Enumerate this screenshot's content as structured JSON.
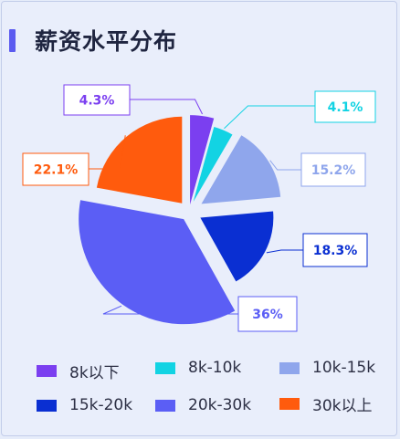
{
  "header": {
    "title": "薪资水平分布"
  },
  "colors": {
    "accent": "#5b5bf0",
    "background": "#e9eefb"
  },
  "chart_data": {
    "type": "pie",
    "title": "",
    "slices": [
      {
        "label": "8k以下",
        "value": 4.3,
        "display": "4.3%",
        "color": "#7b3ff0"
      },
      {
        "label": "8k-10k",
        "value": 4.1,
        "display": "4.1%",
        "color": "#12d3e3"
      },
      {
        "label": "10k-15k",
        "value": 15.2,
        "display": "15.2%",
        "color": "#8fa6ec"
      },
      {
        "label": "15k-20k",
        "value": 18.3,
        "display": "18.3%",
        "color": "#0a2fd2"
      },
      {
        "label": "20k-30k",
        "value": 36,
        "display": "36%",
        "color": "#5b5ef5"
      },
      {
        "label": "30k以上",
        "value": 22.1,
        "display": "22.1%",
        "color": "#ff5b0d"
      }
    ],
    "legend_position": "bottom"
  }
}
